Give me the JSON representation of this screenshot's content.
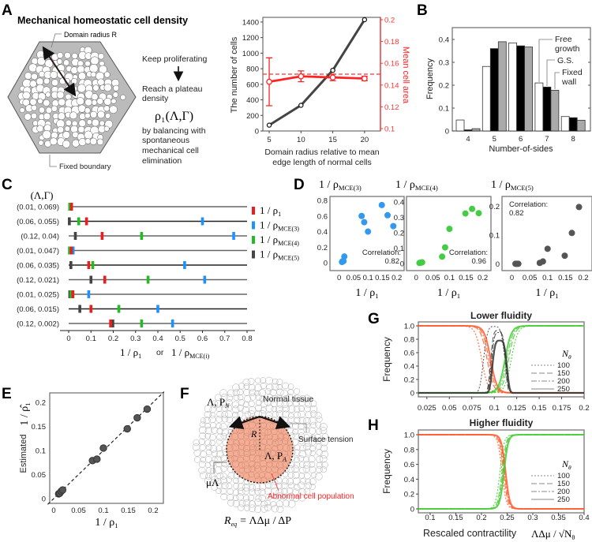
{
  "panels": {
    "A": "A",
    "B": "B",
    "C": "C",
    "D": "D",
    "E": "E",
    "F": "F",
    "G": "G",
    "H": "H"
  },
  "panel_a": {
    "title": "Mechanical homeostatic cell density",
    "domain_radius": "Domain radius R",
    "fixed_boundary": "Fixed boundary",
    "keep": "Keep proliferating",
    "reach1": "Reach a plateau",
    "reach2": "density",
    "formula": "ρ₁(Λ,Γ)",
    "bal1": "by balancing with",
    "bal2": "spontaneous",
    "bal3": "mechanical cell",
    "bal4": "elimination"
  },
  "panel_f": {
    "normal": "Normal tissue",
    "lp_n": "Λ, P",
    "lp_n_sub": "N",
    "lp_a": "Λ, P",
    "lp_a_sub": "A",
    "r": "R",
    "mu": "μΛ",
    "surface": "Surface tension",
    "abnormal": "Abnormal cell population",
    "req": "R",
    "req_sub": "eq",
    "req_rest": "= ΛΔμ / ΔP"
  },
  "colors": {
    "red": "#ee1c1c",
    "blue": "#1e90ff",
    "green": "#22bb22",
    "dark": "#444444",
    "orange": "#ff6633",
    "lightgreen": "#55cc44"
  },
  "chart_data": [
    {
      "id": "A",
      "type": "line",
      "xlabel1": "Domain radius relative to mean",
      "xlabel2": "edge length of normal cells",
      "ylabel": "The number of cells",
      "y2label": "Mean cell area",
      "xticks": [
        5,
        10,
        15,
        20
      ],
      "yticks": [
        0,
        200,
        400,
        600,
        800,
        1000,
        1200,
        1400
      ],
      "y2ticks": [
        "0.1",
        "0.12",
        "0.14",
        "0.16",
        "0.18",
        "0.2"
      ],
      "ylim": [
        0,
        1460
      ],
      "y2lim": [
        0.1,
        0.2
      ],
      "series": [
        {
          "name": "number of cells",
          "axis": "left",
          "x": [
            5,
            10,
            15,
            20
          ],
          "y": [
            75,
            330,
            780,
            1430
          ]
        },
        {
          "name": "mean cell area",
          "axis": "right",
          "x": [
            5,
            10,
            15,
            20
          ],
          "y": [
            0.143,
            0.148,
            0.147,
            0.146
          ],
          "err": [
            0.022,
            0.005,
            0.003,
            0.002
          ]
        }
      ],
      "reference_line": 0.15
    },
    {
      "id": "B",
      "type": "bar",
      "xlabel": "Number-of-sides",
      "ylabel": "Frequency",
      "categories": [
        "4",
        "5",
        "6",
        "7",
        "8"
      ],
      "yticks": [
        "0",
        "0.1",
        "0.2",
        "0.3",
        "0.4"
      ],
      "ylim": [
        0,
        0.44
      ],
      "series": [
        {
          "name": "Free growth",
          "name1": "Free",
          "name2": "growth",
          "values": [
            0.048,
            0.282,
            0.385,
            0.21,
            0.063
          ]
        },
        {
          "name": "G.S.",
          "values": [
            0.005,
            0.36,
            0.372,
            0.192,
            0.058
          ]
        },
        {
          "name": "Fixed wall",
          "name1": "Fixed",
          "name2": "wall",
          "values": [
            0.01,
            0.39,
            0.367,
            0.178,
            0.047
          ]
        }
      ]
    },
    {
      "id": "C",
      "type": "scatter",
      "header": "(Λ,Γ)",
      "xticks": [
        "0",
        "0.1",
        "0.2",
        "0.3",
        "0.4",
        "0.5",
        "0.6",
        "0.7",
        "0.8"
      ],
      "xlabel_a": "1 / ρ",
      "xlabel_a_sub": "1",
      "xlabel_or": "or",
      "xlabel_b": "1 / ρ",
      "xlabel_b_sub": "MCE(i)",
      "legend": [
        {
          "label": "1 / ρ",
          "sub": "1",
          "key": "red"
        },
        {
          "label": "1 / ρ",
          "sub": "MCE(3)",
          "key": "blue"
        },
        {
          "label": "1 / ρ",
          "sub": "MCE(4)",
          "key": "green"
        },
        {
          "label": "1 / ρ",
          "sub": "MCE(5)",
          "key": "dark"
        }
      ],
      "rows": [
        {
          "label": "(0.01, 0.069)",
          "dark": 0.005,
          "blue": 0.008,
          "green": 0.005,
          "red": 0.013
        },
        {
          "label": "(0.06, 0.055)",
          "dark": 0.003,
          "green": 0.045,
          "red": 0.08,
          "blue": 0.6
        },
        {
          "label": "(0.12, 0.04)",
          "dark": 0.03,
          "red": 0.15,
          "green": 0.327,
          "blue": 0.74
        },
        {
          "label": "(0.01, 0.047)",
          "dark": 0.004,
          "green": 0.005,
          "red": 0.012,
          "blue": 0.02
        },
        {
          "label": "(0.06, 0.035)",
          "dark": 0.01,
          "red": 0.09,
          "green": 0.108,
          "blue": 0.52
        },
        {
          "label": "(0.12, 0.021)",
          "dark": 0.1,
          "red": 0.162,
          "green": 0.356,
          "blue": 0.61
        },
        {
          "label": "(0.01, 0.025)",
          "dark": 0.005,
          "green": 0.01,
          "red": 0.019,
          "blue": 0.09
        },
        {
          "label": "(0.06, 0.015)",
          "dark": 0.05,
          "red": 0.1,
          "green": 0.225,
          "blue": 0.4
        },
        {
          "label": "(0.12, 0.002)",
          "red": 0.188,
          "dark": 0.198,
          "green": 0.327,
          "blue": 0.466
        }
      ]
    },
    {
      "id": "D",
      "type": "scatter",
      "plots": [
        {
          "title": "1 / ρ",
          "title_sub": "MCE(3)",
          "color": "#3399ee",
          "corr1": "Correlation:",
          "corr2": "0.82",
          "yticks": [
            "0",
            "0.2",
            "0.4",
            "0.6",
            "0.8"
          ],
          "ylim": [
            -0.05,
            0.8
          ],
          "x": [
            0.01,
            0.012,
            0.015,
            0.018,
            0.078,
            0.087,
            0.1,
            0.148,
            0.168,
            0.188
          ],
          "y": [
            0.01,
            0.02,
            0.02,
            0.08,
            0.6,
            0.52,
            0.4,
            0.74,
            0.61,
            0.47
          ]
        },
        {
          "title": "1 / ρ",
          "title_sub": "MCE(4)",
          "color": "#44cc44",
          "corr1": "Correlation:",
          "corr2": "0.96",
          "yticks": [
            "0",
            "0.1",
            "0.2",
            "0.3",
            "0.4"
          ],
          "ylim": [
            -0.02,
            0.41
          ],
          "x": [
            0.01,
            0.012,
            0.015,
            0.018,
            0.078,
            0.087,
            0.1,
            0.148,
            0.168,
            0.188
          ],
          "y": [
            0.004,
            0.005,
            0.006,
            0.008,
            0.045,
            0.105,
            0.225,
            0.325,
            0.355,
            0.327
          ]
        },
        {
          "title": "1 / ρ",
          "title_sub": "MCE(5)",
          "color": "#555555",
          "corr1": "Correlation:",
          "corr2": "0.82",
          "yticks": [
            "0",
            "0.1",
            "0.2"
          ],
          "ylim": [
            -0.01,
            0.22
          ],
          "x": [
            0.01,
            0.012,
            0.015,
            0.018,
            0.078,
            0.087,
            0.1,
            0.148,
            0.168,
            0.188
          ],
          "y": [
            0,
            0,
            0,
            0,
            0.003,
            0.008,
            0.052,
            0.028,
            0.107,
            0.197
          ]
        }
      ],
      "xticks": [
        "0",
        "0.05",
        "0.1",
        "0.15",
        "0.2"
      ],
      "xlim": [
        -0.01,
        0.22
      ],
      "xlabel": "1 / ρ",
      "xlabel_sub": "1"
    },
    {
      "id": "E",
      "type": "scatter",
      "xlabel": "1 / ρ",
      "xlabel_sub": "1",
      "ylabel_a": "Estimated",
      "ylabel_b": "1 / ρ̂",
      "ylabel_b_sub": "1",
      "xticks": [
        "0",
        "0.05",
        "0.1",
        "0.15",
        "0.2"
      ],
      "yticks": [
        "0",
        "0.05",
        "0.1",
        "0.15",
        "0.2"
      ],
      "xlim": [
        -0.012,
        0.22
      ],
      "ylim": [
        -0.004,
        0.23
      ],
      "x": [
        0.01,
        0.012,
        0.015,
        0.018,
        0.078,
        0.087,
        0.1,
        0.148,
        0.168,
        0.188
      ],
      "y": [
        0.01,
        0.011,
        0.015,
        0.018,
        0.079,
        0.082,
        0.105,
        0.145,
        0.168,
        0.186
      ],
      "reference": "y = x"
    },
    {
      "id": "G",
      "type": "line",
      "title": "Lower fluidity",
      "ylabel": "Frequency",
      "xticks": [
        "0.025",
        "0.05",
        "0.075",
        "0.1",
        "0.125",
        "0.15",
        "0.175",
        "0.2"
      ],
      "xlim": [
        0.0155,
        0.2
      ],
      "yticks": [
        "0",
        "0.2",
        "0.4",
        "0.6",
        "0.8",
        "1.0"
      ],
      "legend_title": "N",
      "legend_title_sub": "θ",
      "legend": [
        "100",
        "150",
        "200",
        "250"
      ],
      "curves": {
        "red_descending_centers": [
          0.086,
          0.092,
          0.094,
          0.096
        ],
        "black_peak_centers": [
          0.1,
          0.104,
          0.105,
          0.106
        ],
        "black_peak_heights": [
          0.99,
          0.93,
          0.9,
          0.78
        ],
        "green_rising_centers": [
          0.119,
          0.116,
          0.114,
          0.112
        ],
        "scale": 0.0035
      }
    },
    {
      "id": "H",
      "type": "line",
      "title": "Higher fluidity",
      "ylabel": "Frequency",
      "xlabel": "Rescaled contractility",
      "xlabel_math": "ΛΔμ / √N",
      "xlabel_math_sub": "θ",
      "xticks": [
        "0.1",
        "0.15",
        "0.2",
        "0.25",
        "0.3",
        "0.35",
        "0.4"
      ],
      "xlim": [
        0.077,
        0.4
      ],
      "yticks": [
        "0",
        "0.2",
        "0.4",
        "0.6",
        "0.8",
        "1.0"
      ],
      "legend_title": "N",
      "legend_title_sub": "θ",
      "legend": [
        "100",
        "150",
        "200",
        "250"
      ],
      "curves": {
        "red_descending_centers": [
          0.24,
          0.243,
          0.245,
          0.247
        ],
        "green_rising_centers": [
          0.236,
          0.24,
          0.242,
          0.244
        ],
        "scale": 0.004
      }
    }
  ]
}
